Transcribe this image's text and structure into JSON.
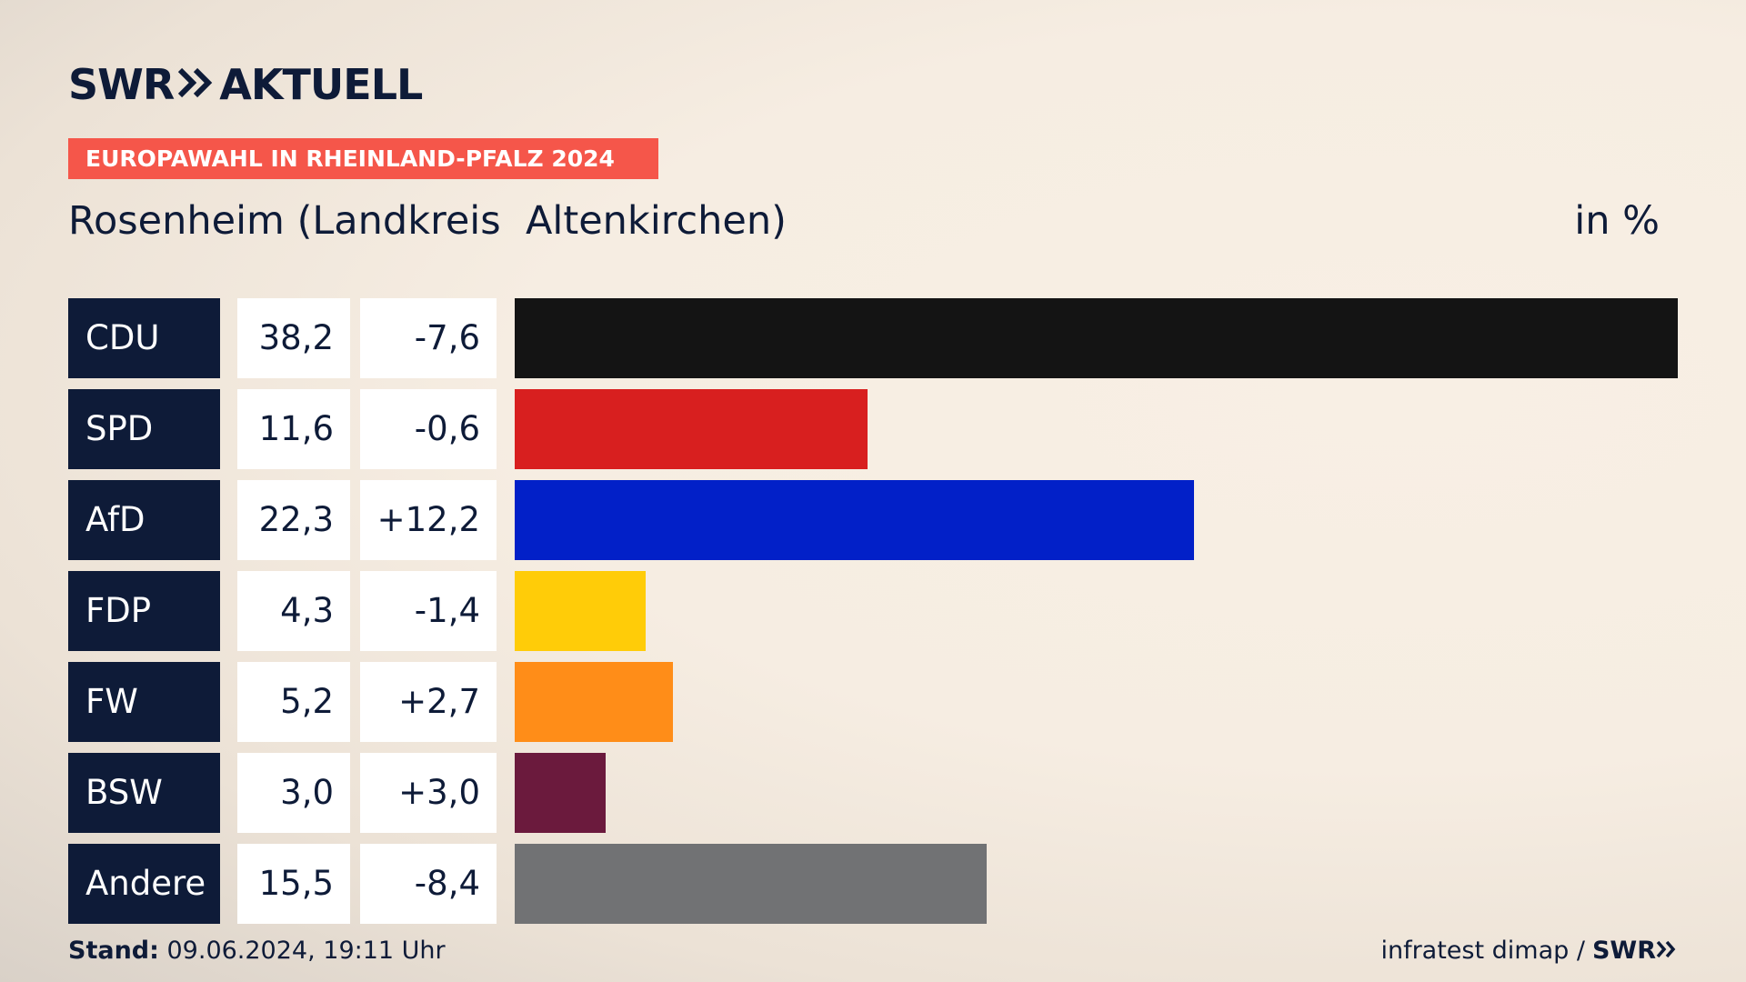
{
  "brand": {
    "swr": "SWR",
    "aktuell": "AKTUELL"
  },
  "badge": "EUROPAWAHL IN RHEINLAND-PFALZ 2024",
  "subtitle": "Rosenheim (Landkreis  Altenkirchen)",
  "unit": "in %",
  "chart_data": {
    "type": "bar",
    "orientation": "horizontal",
    "categories": [
      "CDU",
      "SPD",
      "AfD",
      "FDP",
      "FW",
      "BSW",
      "Andere"
    ],
    "values": [
      38.2,
      11.6,
      22.3,
      4.3,
      5.2,
      3.0,
      15.5
    ],
    "value_labels": [
      "38,2",
      "11,6",
      "22,3",
      "4,3",
      "5,2",
      "3,0",
      "15,5"
    ],
    "diff_labels": [
      "-7,6",
      "-0,6",
      "+12,2",
      "-1,4",
      "+2,7",
      "+3,0",
      "-8,4"
    ],
    "colors": [
      "#141414",
      "#d81f1f",
      "#0220c8",
      "#ffcc08",
      "#ff8d18",
      "#6b1a3d",
      "#717274"
    ],
    "xlim": [
      0,
      38.2
    ]
  },
  "footer": {
    "stand_label": "Stand:",
    "stand_value": " 09.06.2024, 19:11 Uhr",
    "source": "infratest dimap /",
    "source_brand": "SWR"
  }
}
